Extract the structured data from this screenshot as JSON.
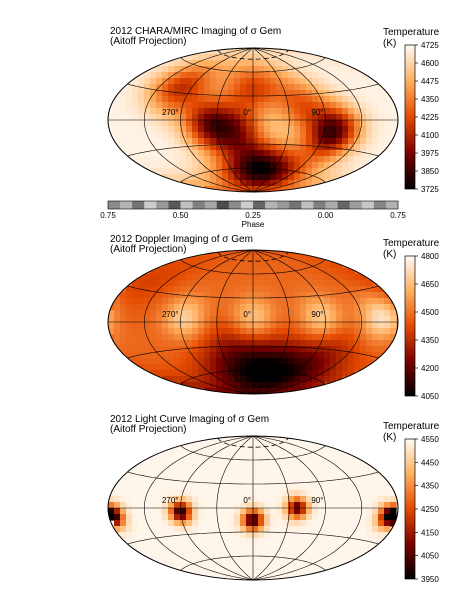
{
  "chart_data": [
    {
      "type": "heatmap",
      "projection": "Aitoff",
      "title_line1": "2012 CHARA/MIRC Imaging of σ Gem",
      "title_line2": "(Aitoff Projection)",
      "colorbar_label": "Temperature",
      "colorbar_unit": "(K)",
      "colorbar_ticks": [
        4725,
        4600,
        4475,
        4350,
        4225,
        4100,
        3975,
        3850,
        3725
      ],
      "vmin": 3725,
      "vmax": 4725,
      "colormap": "gist_heat_r",
      "longitude_labels": [
        "270°",
        "0°",
        "90°"
      ],
      "phase_bar": {
        "label": "Phase",
        "tick_labels": [
          "0.75",
          "0.50",
          "0.25",
          "0.00",
          "0.75"
        ]
      },
      "background_temperature": 4700,
      "spots": [
        {
          "lon": 15,
          "lat": -62,
          "temp": 3750
        },
        {
          "lon": 100,
          "lat": -15,
          "temp": 3850
        },
        {
          "lon": 305,
          "lat": -5,
          "temp": 4050
        },
        {
          "lon": 260,
          "lat": 40,
          "temp": 4150
        },
        {
          "lon": 0,
          "lat": 40,
          "temp": 4225
        },
        {
          "lon": 340,
          "lat": -15,
          "temp": 4150
        },
        {
          "lon": 60,
          "lat": 20,
          "temp": 4300
        }
      ]
    },
    {
      "type": "heatmap",
      "projection": "Aitoff",
      "title_line1": "2012 Doppler Imaging of σ Gem",
      "title_line2": "(Aitoff Projection)",
      "colorbar_label": "Temperature",
      "colorbar_unit": "(K)",
      "colorbar_ticks": [
        4800,
        4650,
        4500,
        4350,
        4200,
        4050
      ],
      "vmin": 4050,
      "vmax": 4800,
      "colormap": "gist_heat_r",
      "longitude_labels": [
        "270°",
        "0°",
        "90°"
      ],
      "background_temperature": 4480,
      "spots": [
        {
          "lon": 30,
          "lat": -62,
          "temp": 4080
        },
        {
          "lon": 330,
          "lat": -40,
          "temp": 4300
        },
        {
          "lon": 100,
          "lat": -40,
          "temp": 4350
        },
        {
          "lon": 200,
          "lat": 50,
          "temp": 4400
        }
      ],
      "bright_regions": [
        {
          "lon": 275,
          "lat": 5,
          "temp": 4700
        },
        {
          "lon": 0,
          "lat": 5,
          "temp": 4680
        },
        {
          "lon": 85,
          "lat": 5,
          "temp": 4700
        },
        {
          "lon": 160,
          "lat": 5,
          "temp": 4750
        }
      ]
    },
    {
      "type": "heatmap",
      "projection": "Aitoff",
      "title_line1": "2012 Light Curve Imaging of σ Gem",
      "title_line2": "(Aitoff Projection)",
      "colorbar_label": "Temperature",
      "colorbar_unit": "(K)",
      "colorbar_ticks": [
        4550,
        4450,
        4350,
        4250,
        4150,
        4050,
        3950
      ],
      "vmin": 3950,
      "vmax": 4550,
      "colormap": "gist_heat_r",
      "longitude_labels": [
        "270°",
        "0°",
        "90°"
      ],
      "background_temperature": 4540,
      "spots": [
        {
          "lon": 270,
          "lat": -5,
          "temp": 3980
        },
        {
          "lon": 0,
          "lat": -15,
          "temp": 4000
        },
        {
          "lon": 55,
          "lat": 0,
          "temp": 4050
        },
        {
          "lon": 170,
          "lat": -10,
          "temp": 4000
        },
        {
          "lon": 185,
          "lat": -10,
          "temp": 4000
        }
      ]
    }
  ]
}
